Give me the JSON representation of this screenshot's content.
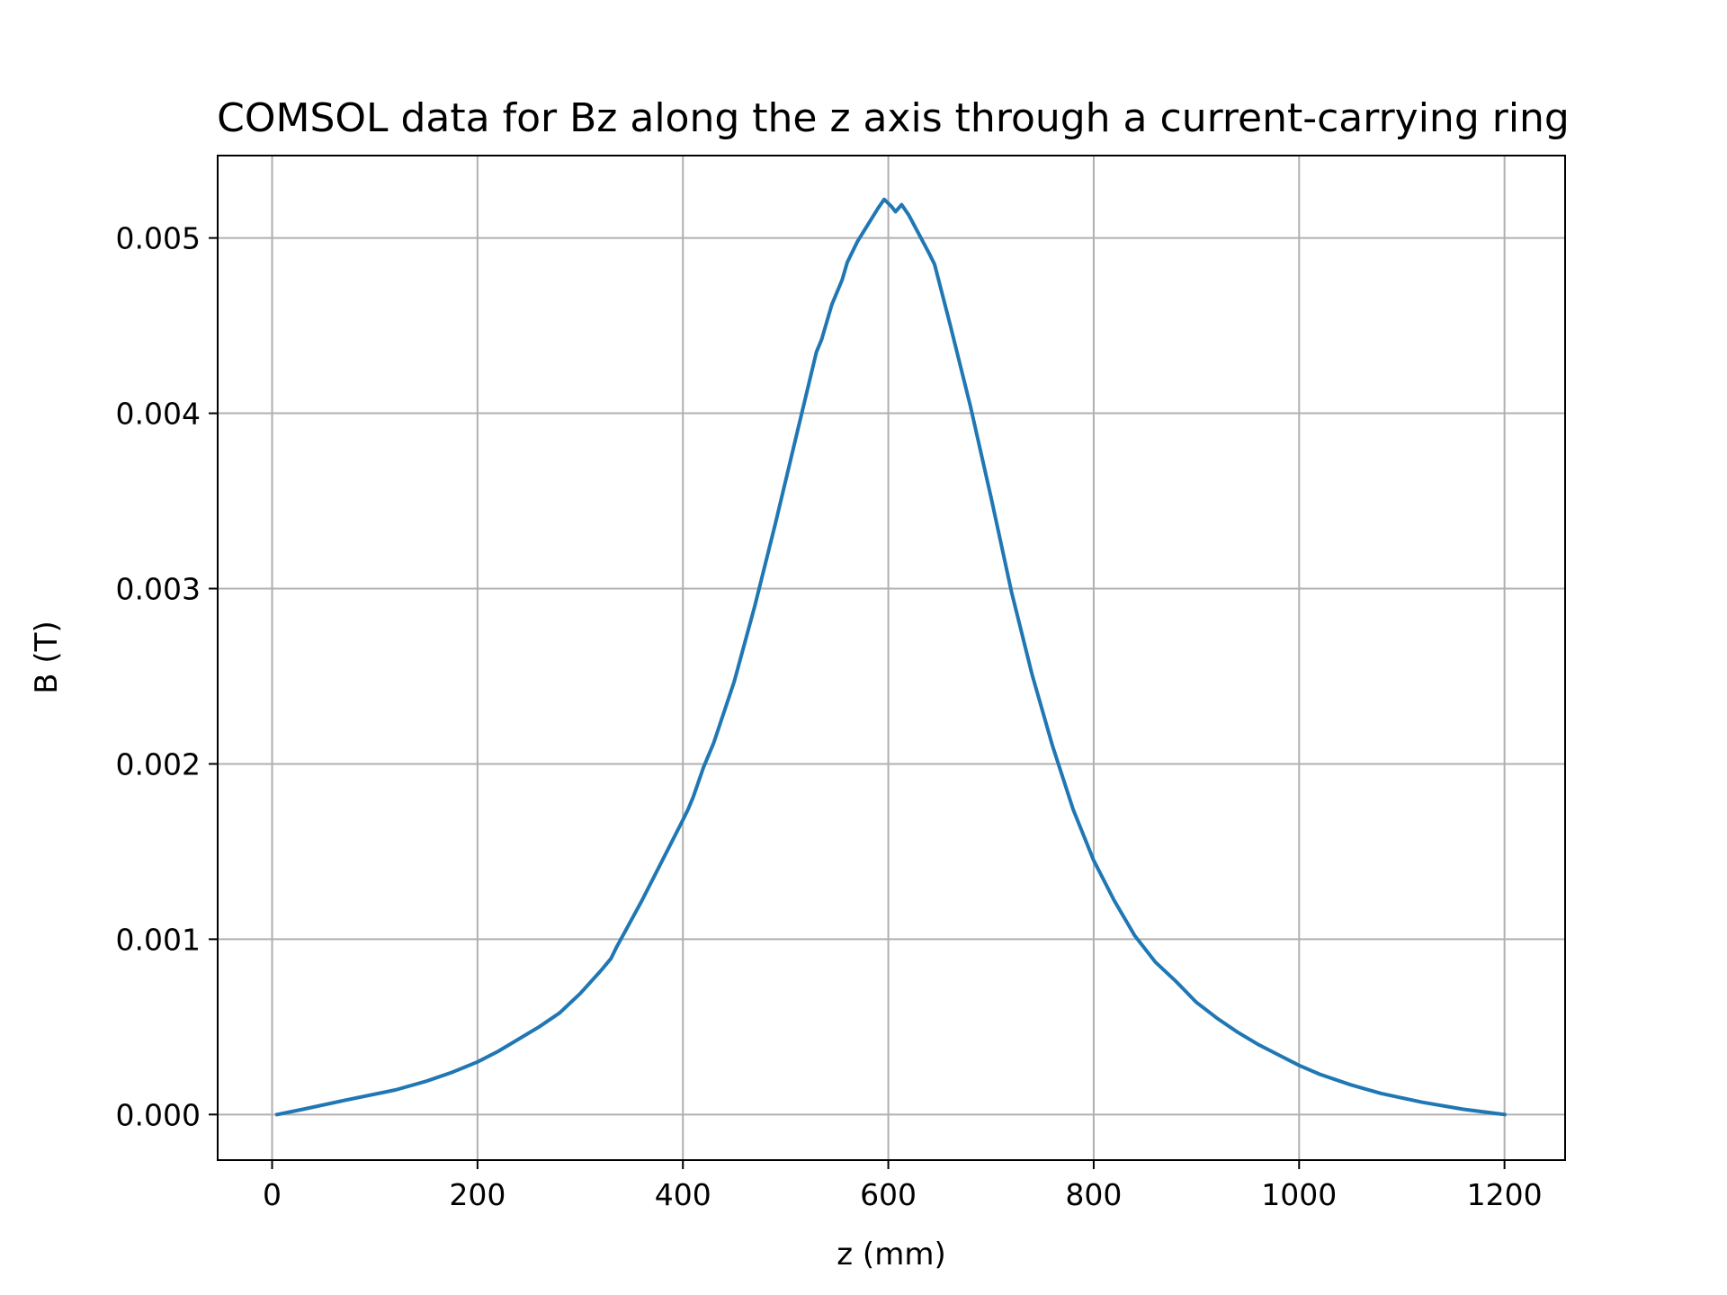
{
  "chart_data": {
    "type": "line",
    "title": "COMSOL data for Bz along the z axis through a current-carrying ring",
    "xlabel": "z (mm)",
    "ylabel": "B (T)",
    "xlim": [
      -53,
      1259
    ],
    "ylim": [
      -0.00026,
      0.00547
    ],
    "xticks": [
      0,
      200,
      400,
      600,
      800,
      1000,
      1200
    ],
    "xtick_labels": [
      "0",
      "200",
      "400",
      "600",
      "800",
      "1000",
      "1200"
    ],
    "yticks": [
      0.0,
      0.001,
      0.002,
      0.003,
      0.004,
      0.005
    ],
    "ytick_labels": [
      "0.000",
      "0.001",
      "0.002",
      "0.003",
      "0.004",
      "0.005"
    ],
    "grid": true,
    "line_color": "#1f77b4",
    "series": [
      {
        "x": [
          5,
          30,
          70,
          120,
          150,
          175,
          200,
          220,
          240,
          260,
          280,
          300,
          320,
          330,
          335,
          360,
          380,
          400,
          405,
          410,
          420,
          430,
          450,
          470,
          490,
          510,
          530,
          535,
          545,
          555,
          560,
          570,
          590,
          596,
          603,
          607,
          613,
          620,
          630,
          640,
          645,
          660,
          680,
          700,
          720,
          740,
          760,
          780,
          800,
          820,
          840,
          860,
          880,
          890,
          900,
          920,
          940,
          960,
          980,
          1000,
          1020,
          1050,
          1080,
          1120,
          1160,
          1200
        ],
        "y": [
          0.0,
          3e-05,
          8e-05,
          0.00014,
          0.00019,
          0.00024,
          0.0003,
          0.00036,
          0.00043,
          0.0005,
          0.00058,
          0.00069,
          0.00082,
          0.00089,
          0.00095,
          0.00122,
          0.00145,
          0.00168,
          0.00174,
          0.00181,
          0.00198,
          0.00212,
          0.00247,
          0.0029,
          0.00337,
          0.00386,
          0.00435,
          0.00442,
          0.00462,
          0.00476,
          0.00486,
          0.00498,
          0.00517,
          0.00522,
          0.00518,
          0.00515,
          0.00519,
          0.00513,
          0.00502,
          0.00491,
          0.00485,
          0.00451,
          0.00404,
          0.00352,
          0.00298,
          0.00251,
          0.0021,
          0.00174,
          0.00145,
          0.00122,
          0.00102,
          0.00087,
          0.00076,
          0.0007,
          0.00064,
          0.00055,
          0.00047,
          0.0004,
          0.00034,
          0.00028,
          0.00023,
          0.00017,
          0.00012,
          7e-05,
          3e-05,
          0.0
        ]
      }
    ]
  }
}
